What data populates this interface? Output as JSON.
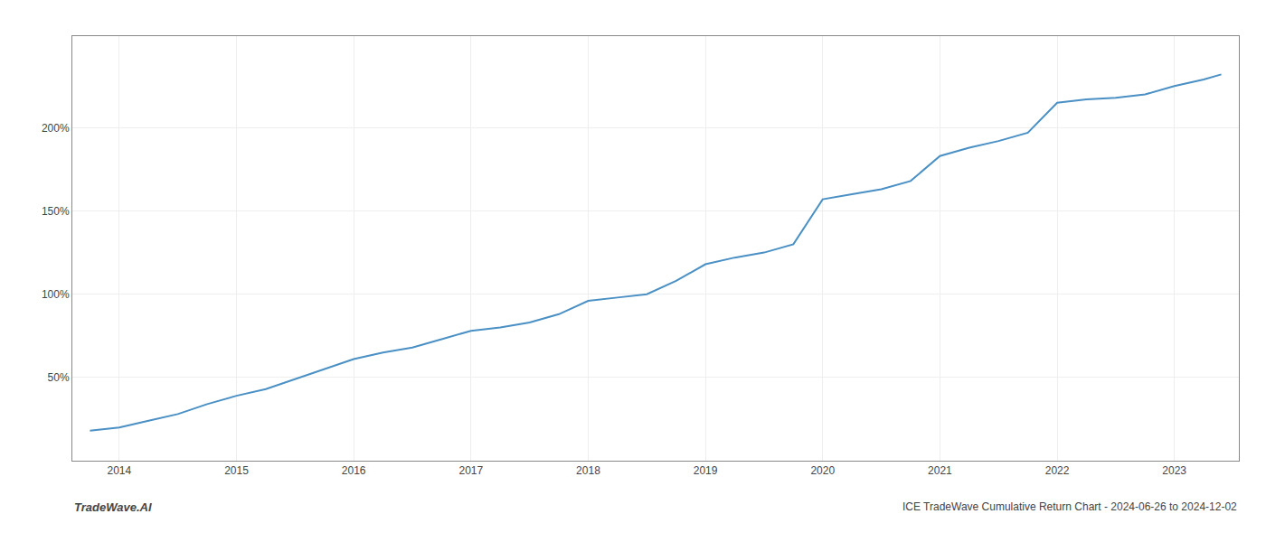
{
  "chart_data": {
    "type": "line",
    "title": "ICE TradeWave Cumulative Return Chart - 2024-06-26 to 2024-12-02",
    "annotations": [
      "TradeWave.AI"
    ],
    "x": [
      2013.75,
      2014.0,
      2014.25,
      2014.5,
      2014.75,
      2015.0,
      2015.25,
      2015.5,
      2015.75,
      2016.0,
      2016.25,
      2016.5,
      2016.75,
      2017.0,
      2017.25,
      2017.5,
      2017.75,
      2018.0,
      2018.25,
      2018.5,
      2018.75,
      2019.0,
      2019.25,
      2019.5,
      2019.75,
      2020.0,
      2020.25,
      2020.5,
      2020.75,
      2021.0,
      2021.25,
      2021.5,
      2021.75,
      2022.0,
      2022.25,
      2022.5,
      2022.75,
      2023.0,
      2023.25,
      2023.4
    ],
    "values": [
      18,
      20,
      24,
      28,
      34,
      39,
      43,
      49,
      55,
      61,
      65,
      68,
      73,
      78,
      80,
      83,
      88,
      96,
      98,
      100,
      108,
      118,
      122,
      125,
      130,
      157,
      160,
      163,
      168,
      183,
      188,
      192,
      197,
      215,
      217,
      218,
      220,
      225,
      229,
      232
    ],
    "color": "#4a90c4",
    "xlim": [
      2013.6,
      2023.55
    ],
    "xticks": [
      2014,
      2015,
      2016,
      2017,
      2018,
      2019,
      2020,
      2021,
      2022,
      2023
    ],
    "ylim": [
      0,
      255
    ],
    "yticks": [
      {
        "value": 50,
        "label": "50%"
      },
      {
        "value": 100,
        "label": "100%"
      },
      {
        "value": 150,
        "label": "150%"
      },
      {
        "value": 200,
        "label": "200%"
      }
    ],
    "grid": true
  }
}
